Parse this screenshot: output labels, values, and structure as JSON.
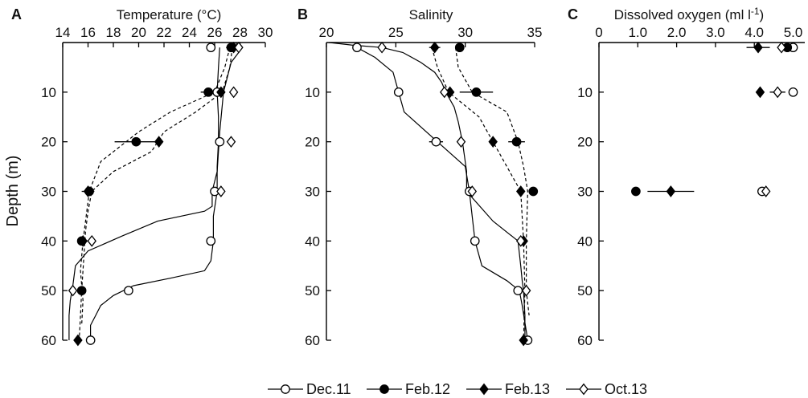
{
  "figure": {
    "ylabel": "Depth (m)",
    "legend_position": "bottom-center"
  },
  "chart_data": [
    {
      "type": "scatter",
      "panel": "A",
      "title": "Temperature (°C)",
      "x_axis": "top",
      "xlim": [
        14,
        30
      ],
      "xticks": [
        "14",
        "16",
        "18",
        "20",
        "22",
        "24",
        "26",
        "28",
        "30"
      ],
      "ylim": [
        0,
        60
      ],
      "yticks": [
        "10",
        "20",
        "30",
        "40",
        "50",
        "60"
      ],
      "y_inverted": true,
      "series": [
        {
          "name": "Dec.11",
          "marker": "open-circle",
          "depth": [
            1,
            10,
            20,
            30,
            40,
            50,
            60
          ],
          "values": [
            25.7,
            26.2,
            26.4,
            26.0,
            25.7,
            19.2,
            16.2
          ],
          "xerr": [
            0,
            0.4,
            0,
            0,
            0,
            0,
            0
          ]
        },
        {
          "name": "Feb.12",
          "marker": "filled-circle",
          "depth": [
            1,
            10,
            20,
            30,
            40,
            50
          ],
          "values": [
            27.3,
            25.5,
            19.8,
            16.1,
            15.5,
            15.5
          ],
          "xerr": [
            0.4,
            0.6,
            1.7,
            0,
            0,
            0
          ]
        },
        {
          "name": "Feb.13",
          "marker": "filled-diamond",
          "depth": [
            1,
            10,
            20,
            30,
            40,
            60
          ],
          "values": [
            27.5,
            26.5,
            21.6,
            16.0,
            15.6,
            15.2
          ],
          "xerr": [
            0,
            0,
            0,
            0.5,
            0.4,
            0
          ]
        },
        {
          "name": "Oct.13",
          "marker": "open-diamond",
          "depth": [
            1,
            10,
            20,
            30,
            40,
            50
          ],
          "values": [
            27.9,
            27.5,
            27.3,
            26.5,
            16.3,
            14.8
          ],
          "xerr": [
            0,
            0,
            0,
            0,
            0,
            0
          ]
        }
      ],
      "profiles": [
        {
          "style": "solid",
          "depth": [
            0,
            2,
            4,
            10,
            18,
            26,
            30,
            33,
            34,
            36,
            39,
            42,
            45,
            47,
            49,
            52,
            55,
            57,
            60
          ],
          "values": [
            27.7,
            27.9,
            27.3,
            26.7,
            26.4,
            26.2,
            25.8,
            25.8,
            25.2,
            21.5,
            18.7,
            16.0,
            15.0,
            14.9,
            14.8,
            14.6,
            14.5,
            14.5,
            14.5
          ]
        },
        {
          "style": "solid",
          "depth": [
            1,
            5,
            10,
            15,
            20,
            25,
            30,
            35,
            40,
            44,
            46,
            47.5,
            49,
            51,
            53,
            55,
            57,
            60
          ],
          "values": [
            26.4,
            26.3,
            26.2,
            26.3,
            26.3,
            26.2,
            26.2,
            25.9,
            25.9,
            25.7,
            25.2,
            22.5,
            19.6,
            18.0,
            17.0,
            16.6,
            16.2,
            16.2
          ]
        },
        {
          "style": "dashed",
          "depth": [
            1,
            5,
            10,
            14,
            18,
            20,
            24,
            28,
            30,
            32,
            36,
            40,
            46,
            52,
            57
          ],
          "values": [
            27.2,
            26.8,
            26.0,
            22.5,
            20.0,
            19.0,
            17.0,
            16.4,
            16.1,
            16.0,
            15.8,
            15.6,
            15.4,
            15.6,
            15.5
          ]
        },
        {
          "style": "dashed",
          "depth": [
            1,
            5,
            10,
            14,
            18,
            22,
            26,
            30,
            34,
            38,
            42,
            46,
            50,
            55,
            60
          ],
          "values": [
            27.4,
            27.2,
            26.6,
            24.5,
            22.0,
            21.0,
            18.0,
            16.3,
            16.0,
            15.8,
            15.7,
            15.6,
            15.5,
            15.4,
            15.3
          ]
        }
      ]
    },
    {
      "type": "scatter",
      "panel": "B",
      "title": "Salinity",
      "x_axis": "top",
      "xlim": [
        20,
        35
      ],
      "xticks": [
        "20",
        "25",
        "30",
        "35"
      ],
      "ylim": [
        0,
        60
      ],
      "yticks": [
        "10",
        "20",
        "30",
        "40",
        "50",
        "60"
      ],
      "y_inverted": true,
      "series": [
        {
          "name": "Dec.11",
          "marker": "open-circle",
          "depth": [
            1,
            10,
            20,
            30,
            40,
            50,
            60
          ],
          "values": [
            22.2,
            25.2,
            27.9,
            30.3,
            30.7,
            33.8,
            34.5
          ],
          "xerr": [
            0,
            0,
            0.5,
            0,
            0,
            0,
            0
          ]
        },
        {
          "name": "Feb.12",
          "marker": "filled-circle",
          "depth": [
            1,
            10,
            20,
            30
          ],
          "values": [
            29.6,
            30.8,
            33.7,
            34.9
          ],
          "xerr": [
            0,
            1.2,
            0.6,
            0
          ]
        },
        {
          "name": "Feb.13",
          "marker": "filled-diamond",
          "depth": [
            1,
            10,
            20,
            30,
            40,
            60
          ],
          "values": [
            27.8,
            28.9,
            32.0,
            34.0,
            34.2,
            34.2
          ],
          "xerr": [
            0.4,
            0,
            0,
            0,
            0,
            0
          ]
        },
        {
          "name": "Oct.13",
          "marker": "open-diamond",
          "depth": [
            1,
            10,
            20,
            30,
            40,
            50
          ],
          "values": [
            24.0,
            28.5,
            29.7,
            30.5,
            34.0,
            34.4
          ],
          "xerr": [
            0,
            0,
            0,
            0,
            0,
            0
          ]
        }
      ],
      "profiles": [
        {
          "style": "solid",
          "depth": [
            0,
            0.5,
            1,
            2,
            4,
            6,
            8,
            10,
            13,
            16,
            20,
            26,
            30,
            36,
            40,
            45,
            48,
            50,
            55,
            60
          ],
          "values": [
            20.2,
            21.8,
            24.0,
            25.5,
            26.8,
            27.8,
            28.3,
            28.6,
            29.2,
            29.5,
            29.8,
            30.1,
            30.1,
            32.0,
            33.8,
            34.0,
            34.1,
            34.2,
            34.3,
            34.3
          ]
        },
        {
          "style": "solid",
          "depth": [
            1,
            3,
            6,
            10,
            14,
            20,
            25,
            30,
            35,
            40,
            45,
            48,
            50,
            53,
            60
          ],
          "values": [
            22.2,
            23.5,
            24.8,
            25.2,
            25.6,
            28.0,
            30.0,
            30.3,
            30.5,
            30.7,
            31.2,
            33.0,
            33.9,
            34.1,
            34.5
          ]
        },
        {
          "style": "dashed",
          "depth": [
            1,
            5,
            10,
            14,
            20,
            25,
            30,
            40,
            50,
            55
          ],
          "values": [
            29.3,
            29.5,
            30.5,
            33.0,
            33.8,
            34.2,
            34.5,
            34.4,
            34.4,
            34.6
          ]
        },
        {
          "style": "dashed",
          "depth": [
            1,
            5,
            10,
            15,
            20,
            30,
            40,
            50,
            60
          ],
          "values": [
            27.6,
            28.0,
            28.8,
            31.0,
            32.0,
            34.0,
            34.2,
            34.3,
            34.2
          ]
        }
      ]
    },
    {
      "type": "scatter",
      "panel": "C",
      "title": "Dissolved oxygen (ml l-1)",
      "title_main": "Dissolved oxygen (ml l",
      "title_sup": "-1",
      "title_end": ")",
      "x_axis": "top",
      "xlim": [
        0,
        5.3
      ],
      "xticks": [
        "0",
        "1.0",
        "2.0",
        "3.0",
        "4.0",
        "5.0"
      ],
      "ylim": [
        0,
        60
      ],
      "yticks": [
        "10",
        "20",
        "30",
        "40",
        "50",
        "60"
      ],
      "y_inverted": true,
      "series": [
        {
          "name": "Dec.11",
          "marker": "open-circle",
          "depth": [
            1,
            10,
            30
          ],
          "values": [
            5.0,
            5.0,
            4.2
          ],
          "xerr": [
            0.1,
            0,
            0
          ]
        },
        {
          "name": "Feb.12",
          "marker": "filled-circle",
          "depth": [
            1,
            30
          ],
          "values": [
            4.85,
            0.95
          ],
          "xerr": [
            0,
            0
          ]
        },
        {
          "name": "Feb.13",
          "marker": "filled-diamond",
          "depth": [
            1,
            10,
            30
          ],
          "values": [
            4.1,
            4.15,
            1.85
          ],
          "xerr": [
            0.3,
            0,
            0.6
          ]
        },
        {
          "name": "Oct.13",
          "marker": "open-diamond",
          "depth": [
            1,
            10,
            30
          ],
          "values": [
            4.7,
            4.6,
            4.3
          ],
          "xerr": [
            0,
            0.2,
            0
          ]
        }
      ]
    }
  ],
  "legend": [
    {
      "label": "Dec.11",
      "marker": "open-circle"
    },
    {
      "label": "Feb.12",
      "marker": "filled-circle"
    },
    {
      "label": "Feb.13",
      "marker": "filled-diamond"
    },
    {
      "label": "Oct.13",
      "marker": "open-diamond"
    }
  ]
}
